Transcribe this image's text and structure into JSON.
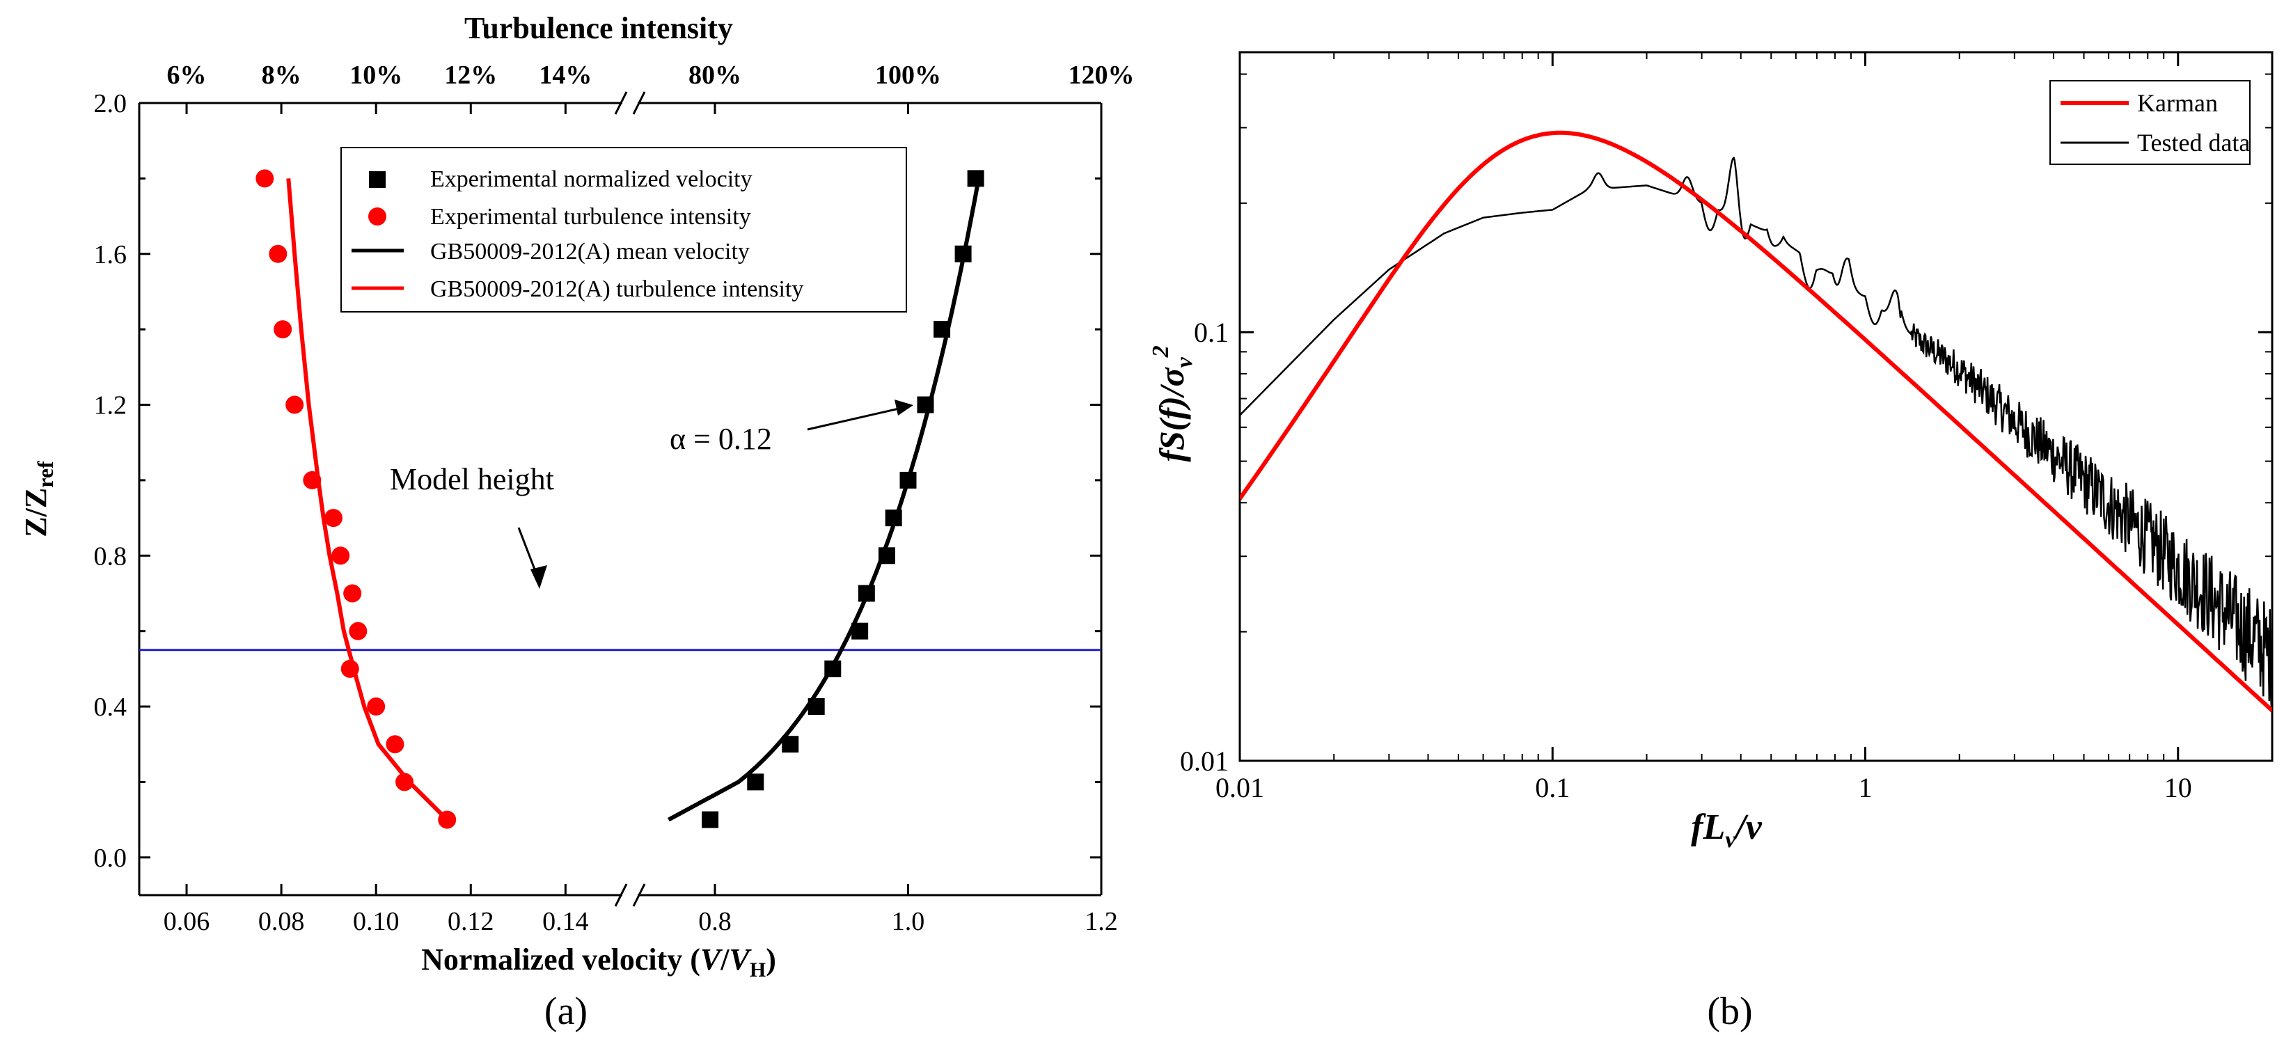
{
  "chart_data": [
    {
      "type": "scatter",
      "panel_label": "(a)",
      "title": "Turbulence intensity",
      "xlabel": {
        "text": "Normalized velocity (",
        "var": "V",
        "slash": "/",
        "var2": "V",
        "sub": "H",
        "close": ")"
      },
      "ylabel": {
        "text": "Z/Z",
        "sub": "ref"
      },
      "y_ticks": [
        "0.0",
        "0.4",
        "0.8",
        "1.2",
        "1.6",
        "2.0"
      ],
      "ylim": [
        -0.1,
        2.0
      ],
      "bottom_left_ticks": [
        "0.06",
        "0.08",
        "0.10",
        "0.12",
        "0.14"
      ],
      "bottom_right_ticks": [
        "0.8",
        "1.0",
        "1.2"
      ],
      "top_left_ticks": [
        "6%",
        "8%",
        "10%",
        "12%",
        "14%"
      ],
      "top_right_ticks": [
        "80%",
        "100%",
        "120%"
      ],
      "xlim_left": [
        0.05,
        0.152
      ],
      "xlim_right": [
        0.72,
        1.2
      ],
      "legend": [
        {
          "label": "Experimental normalized velocity",
          "marker": "square",
          "color": "#000000"
        },
        {
          "label": "Experimental  turbulence intensity",
          "marker": "circle",
          "color": "#ff0000"
        },
        {
          "label": "GB50009-2012(A) mean velocity",
          "marker": "line",
          "color": "#000000"
        },
        {
          "label": "GB50009-2012(A) turbulence intensity",
          "marker": "line",
          "color": "#ff0000"
        }
      ],
      "series": [
        {
          "name": "Experimental normalized velocity",
          "axis": "right",
          "points": [
            [
              0.795,
              0.1
            ],
            [
              0.842,
              0.2
            ],
            [
              0.878,
              0.3
            ],
            [
              0.905,
              0.4
            ],
            [
              0.922,
              0.5
            ],
            [
              0.95,
              0.6
            ],
            [
              0.957,
              0.7
            ],
            [
              0.978,
              0.8
            ],
            [
              0.985,
              0.9
            ],
            [
              1.0,
              1.0
            ],
            [
              1.018,
              1.2
            ],
            [
              1.035,
              1.4
            ],
            [
              1.057,
              1.6
            ],
            [
              1.07,
              1.8
            ]
          ]
        },
        {
          "name": "Experimental  turbulence intensity",
          "axis": "left",
          "points": [
            [
              0.115,
              0.1
            ],
            [
              0.106,
              0.2
            ],
            [
              0.104,
              0.3
            ],
            [
              0.1,
              0.4
            ],
            [
              0.0945,
              0.5
            ],
            [
              0.0962,
              0.6
            ],
            [
              0.095,
              0.7
            ],
            [
              0.0925,
              0.8
            ],
            [
              0.091,
              0.9
            ],
            [
              0.0865,
              1.0
            ],
            [
              0.0828,
              1.2
            ],
            [
              0.0803,
              1.4
            ],
            [
              0.0793,
              1.6
            ],
            [
              0.0765,
              1.8
            ]
          ]
        },
        {
          "name": "GB50009-2012(A) mean velocity",
          "axis": "right",
          "alpha": 0.12,
          "z_range": [
            0.1,
            1.8
          ],
          "v_start": 0.752
        },
        {
          "name": "GB50009-2012(A) turbulence intensity",
          "axis": "left",
          "points": [
            [
              0.115,
              0.1
            ],
            [
              0.107,
              0.2
            ],
            [
              0.1005,
              0.3
            ],
            [
              0.0975,
              0.4
            ],
            [
              0.0953,
              0.5
            ],
            [
              0.0932,
              0.6
            ],
            [
              0.0918,
              0.7
            ],
            [
              0.0902,
              0.8
            ],
            [
              0.0889,
              0.9
            ],
            [
              0.0878,
              1.0
            ],
            [
              0.0858,
              1.2
            ],
            [
              0.0842,
              1.4
            ],
            [
              0.0828,
              1.6
            ],
            [
              0.0815,
              1.8
            ]
          ]
        }
      ],
      "reference_line": {
        "label": "Model height",
        "y": 0.55,
        "color": "#1f1fcc"
      },
      "annotations": [
        {
          "text": "α = 0.12"
        }
      ]
    },
    {
      "type": "line",
      "panel_label": "(b)",
      "xscale": "log",
      "yscale": "log",
      "xlim": [
        0.01,
        20
      ],
      "ylim": [
        0.01,
        0.45
      ],
      "x_ticks": [
        "0.01",
        "0.1",
        "1",
        "10"
      ],
      "y_ticks": [
        "0.01",
        "0.1"
      ],
      "xlabel": {
        "a": "fL",
        "sub": "v",
        "b": "/v"
      },
      "ylabel": {
        "a": "fS(f)/σ",
        "sub": "v",
        "sup": "2"
      },
      "legend": [
        {
          "label": "Karman",
          "color": "#ff0000"
        },
        {
          "label": "Tested data",
          "color": "#000000"
        }
      ],
      "series": [
        {
          "name": "Karman",
          "model": "von Karman lateral spectrum",
          "color": "#ff0000"
        },
        {
          "name": "Tested data",
          "color": "#000000",
          "trend": [
            [
              0.01,
              0.064
            ],
            [
              0.02,
              0.107
            ],
            [
              0.03,
              0.14
            ],
            [
              0.045,
              0.17
            ],
            [
              0.06,
              0.185
            ],
            [
              0.08,
              0.19
            ],
            [
              0.1,
              0.193
            ],
            [
              0.13,
              0.215
            ],
            [
              0.2,
              0.22
            ],
            [
              0.3,
              0.2
            ],
            [
              0.5,
              0.17
            ],
            [
              0.8,
              0.135
            ],
            [
              1.0,
              0.12
            ],
            [
              1.5,
              0.095
            ],
            [
              2.0,
              0.082
            ],
            [
              3.0,
              0.062
            ],
            [
              5.0,
              0.045
            ],
            [
              8.0,
              0.033
            ],
            [
              12.0,
              0.025
            ],
            [
              20.0,
              0.0175
            ]
          ],
          "peaks": [
            [
              0.14,
              0.235
            ],
            [
              0.27,
              0.23
            ],
            [
              0.38,
              0.255
            ],
            [
              0.52,
              0.18
            ],
            [
              0.68,
              0.14
            ],
            [
              0.86,
              0.16
            ],
            [
              1.05,
              0.12
            ],
            [
              1.25,
              0.125
            ]
          ]
        }
      ]
    }
  ],
  "panel_labels": {
    "a": "(a)",
    "b": "(b)"
  }
}
